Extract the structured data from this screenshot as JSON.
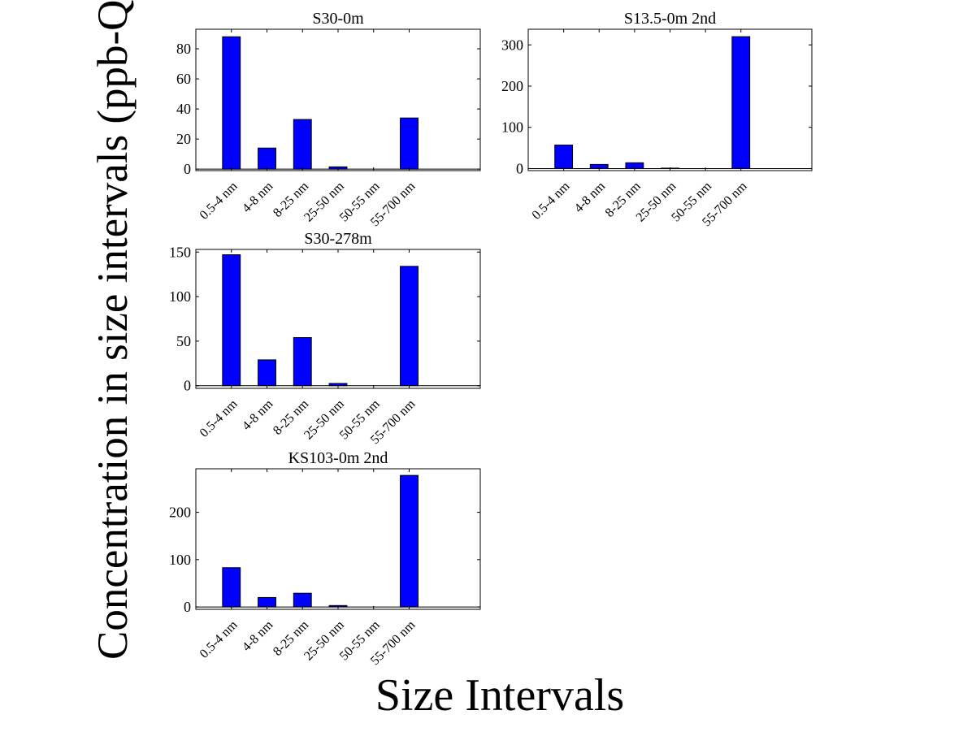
{
  "figure": {
    "ylabel": "Concentration in size intervals (ppb-QS",
    "xlabel": "Size Intervals"
  },
  "colors": {
    "bar_fill": "#0000ff",
    "bar_stroke": "#000000",
    "axis": "#000000"
  },
  "chart_data": [
    {
      "type": "bar",
      "title": "S30-0m",
      "categories": [
        "0.5-4 nm",
        "4-8 nm",
        "8-25 nm",
        "25-50 nm",
        "50-55 nm",
        "55-700 nm"
      ],
      "values": [
        88,
        14,
        33,
        1.5,
        0,
        34
      ],
      "ylim": [
        -1,
        93
      ],
      "yticks": [
        0,
        20,
        40,
        60,
        80
      ],
      "grid": false
    },
    {
      "type": "bar",
      "title": "S13.5-0m 2nd",
      "categories": [
        "0.5-4 nm",
        "4-8 nm",
        "8-25 nm",
        "25-50 nm",
        "50-55 nm",
        "55-700 nm"
      ],
      "values": [
        57,
        10,
        14,
        1,
        0,
        320
      ],
      "ylim": [
        -5,
        338
      ],
      "yticks": [
        0,
        100,
        200,
        300
      ],
      "grid": false
    },
    {
      "type": "bar",
      "title": "S30-278m",
      "categories": [
        "0.5-4 nm",
        "4-8 nm",
        "8-25 nm",
        "25-50 nm",
        "50-55 nm",
        "55-700 nm"
      ],
      "values": [
        147,
        29,
        54,
        2.5,
        0,
        134
      ],
      "ylim": [
        -3,
        153
      ],
      "yticks": [
        0,
        50,
        100,
        150
      ],
      "grid": false
    },
    {
      "type": "bar",
      "title": "KS103-0m 2nd",
      "categories": [
        "0.5-4 nm",
        "4-8 nm",
        "8-25 nm",
        "25-50 nm",
        "50-55 nm",
        "55-700 nm"
      ],
      "values": [
        83,
        20,
        29,
        3,
        0,
        278
      ],
      "ylim": [
        -5,
        292
      ],
      "yticks": [
        0,
        100,
        200
      ],
      "grid": false
    }
  ]
}
